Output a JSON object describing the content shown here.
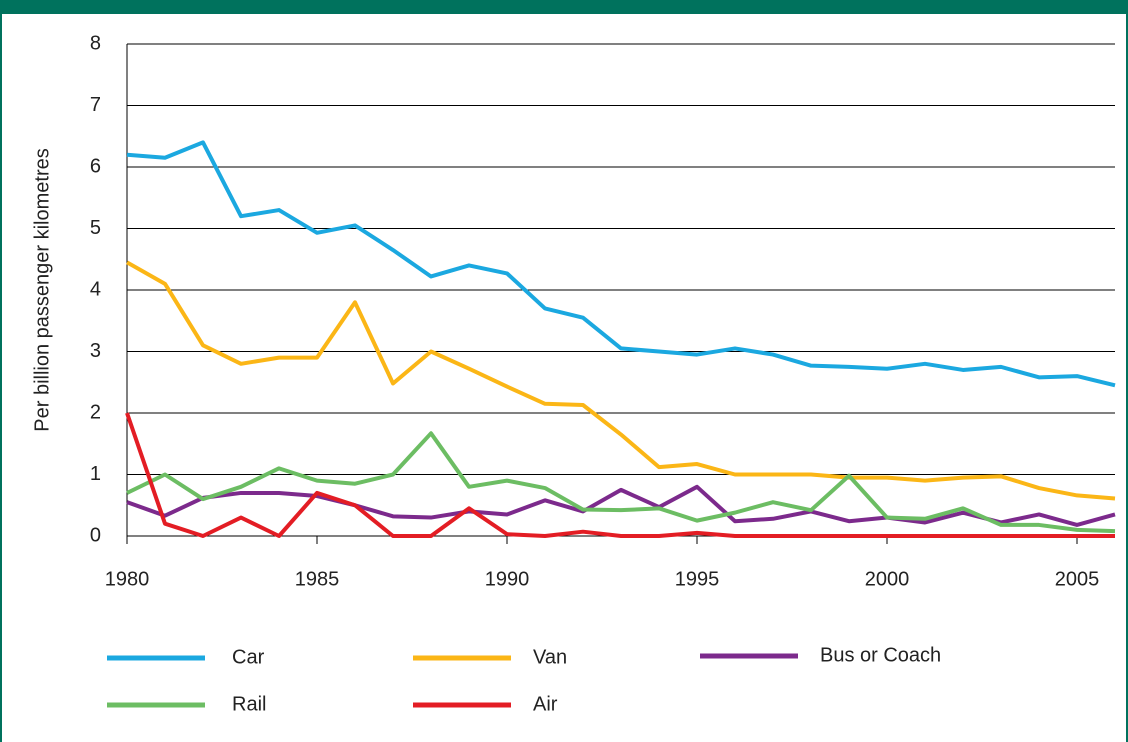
{
  "chart_data": {
    "type": "line",
    "y_label": "Per billion passenger kilometres",
    "x": [
      1980,
      1981,
      1982,
      1983,
      1984,
      1985,
      1986,
      1987,
      1988,
      1989,
      1990,
      1991,
      1992,
      1993,
      1994,
      1995,
      1996,
      1997,
      1998,
      1999,
      2000,
      2001,
      2002,
      2003,
      2004,
      2005,
      2006
    ],
    "xlim": [
      1980,
      2006
    ],
    "xticks": [
      1980,
      1985,
      1990,
      1995,
      2000,
      2005
    ],
    "ylim": [
      0,
      8
    ],
    "yticks": [
      0,
      1,
      2,
      3,
      4,
      5,
      6,
      7,
      8
    ],
    "grid": true,
    "legend": "bottom",
    "series": [
      {
        "name": "Car",
        "color": "#1ba8e0",
        "values": [
          6.2,
          6.15,
          6.4,
          5.2,
          5.3,
          4.93,
          5.05,
          4.65,
          4.22,
          4.4,
          4.27,
          3.7,
          3.55,
          3.05,
          3.0,
          2.95,
          3.05,
          2.95,
          2.77,
          2.75,
          2.72,
          2.8,
          2.7,
          2.75,
          2.58,
          2.6,
          2.45
        ]
      },
      {
        "name": "Van",
        "color": "#fbb616",
        "values": [
          4.45,
          4.1,
          3.1,
          2.8,
          2.9,
          2.9,
          3.8,
          2.48,
          3.0,
          2.72,
          2.43,
          2.15,
          2.13,
          1.65,
          1.12,
          1.17,
          1.0,
          1.0,
          1.0,
          0.95,
          0.95,
          0.9,
          0.95,
          0.97,
          0.78,
          0.66,
          0.61
        ]
      },
      {
        "name": "Bus or Coach",
        "color": "#7c2a8c",
        "values": [
          0.55,
          0.33,
          0.62,
          0.7,
          0.7,
          0.65,
          0.5,
          0.32,
          0.3,
          0.4,
          0.35,
          0.58,
          0.4,
          0.75,
          0.47,
          0.8,
          0.24,
          0.28,
          0.4,
          0.24,
          0.3,
          0.22,
          0.38,
          0.22,
          0.35,
          0.18,
          0.35
        ]
      },
      {
        "name": "Rail",
        "color": "#6cbd63",
        "values": [
          0.7,
          1.0,
          0.6,
          0.8,
          1.1,
          0.9,
          0.85,
          1.0,
          1.67,
          0.8,
          0.9,
          0.78,
          0.43,
          0.42,
          0.45,
          0.25,
          0.38,
          0.55,
          0.42,
          0.98,
          0.3,
          0.28,
          0.45,
          0.18,
          0.18,
          0.1,
          0.08
        ]
      },
      {
        "name": "Air",
        "color": "#e31d24",
        "values": [
          2.0,
          0.2,
          0.0,
          0.3,
          0.0,
          0.7,
          0.5,
          0.0,
          0.0,
          0.45,
          0.03,
          0.0,
          0.07,
          0.0,
          0.0,
          0.05,
          0.0,
          0.0,
          0.0,
          0.0,
          0.0,
          0.0,
          0.0,
          0.0,
          0.0,
          0.0,
          0.0
        ]
      }
    ]
  }
}
